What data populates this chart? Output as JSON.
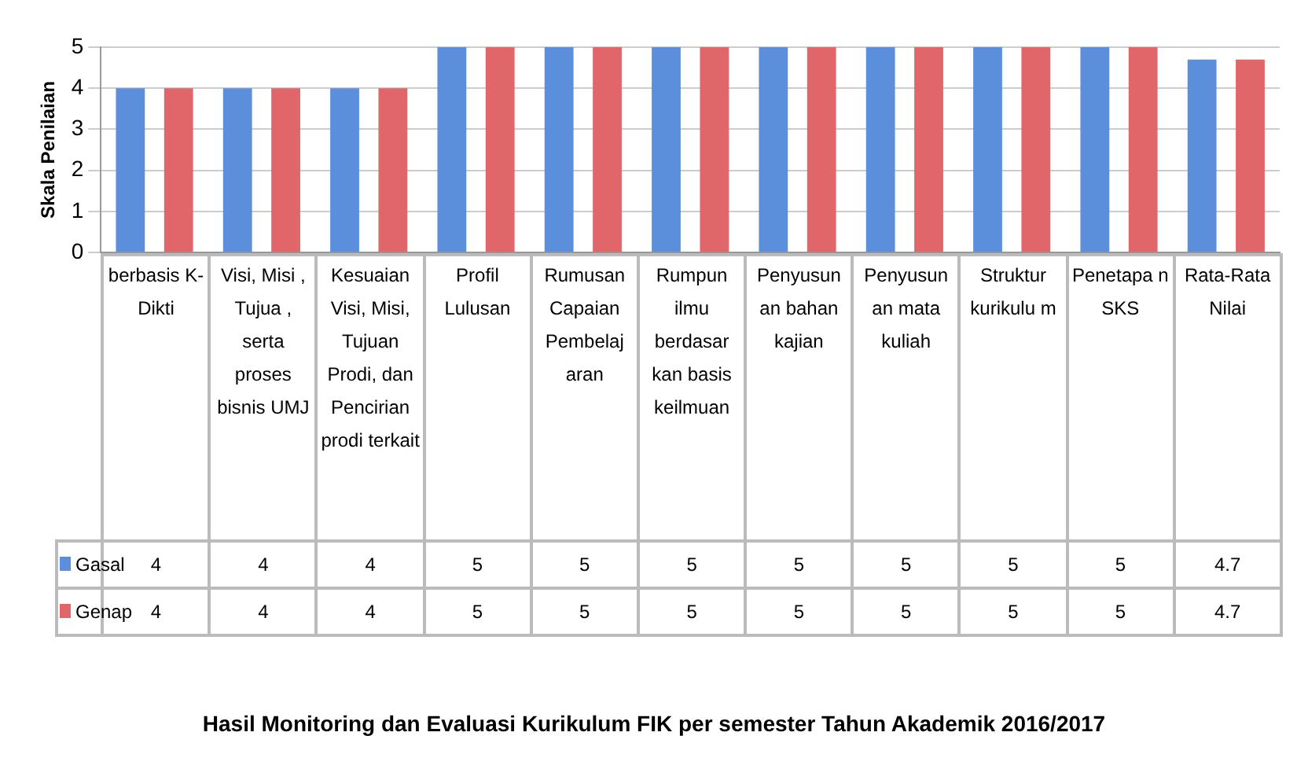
{
  "chart_data": {
    "type": "bar",
    "title": "Hasil Monitoring dan Evaluasi Kurikulum FIK per semester Tahun Akademik 2016/2017",
    "ylabel": "Skala Penilaian",
    "categories": [
      "berbasis K-Dikti",
      "Visi, Misi , Tujua , serta proses bisnis UMJ",
      "Kesuaian Visi, Misi, Tujuan Prodi, dan Pencirian prodi terkait",
      "Profil Lulusan",
      "Rumusan Capaian Pembelaj aran",
      "Rumpun ilmu berdasar kan basis keilmuan",
      "Penyusun an bahan kajian",
      "Penyusun an mata kuliah",
      "Struktur kurikulu m",
      "Penetapa n SKS",
      "Rata-Rata Nilai"
    ],
    "series": [
      {
        "name": "Gasal",
        "color": "#5b8fdc",
        "values": [
          4,
          4,
          4,
          5,
          5,
          5,
          5,
          5,
          5,
          5,
          4.7
        ]
      },
      {
        "name": "Genap",
        "color": "#e0666a",
        "values": [
          4,
          4,
          4,
          5,
          5,
          5,
          5,
          5,
          5,
          5,
          4.7
        ]
      }
    ],
    "ylim": [
      0,
      5
    ],
    "yticks": [
      0,
      1,
      2,
      3,
      4,
      5
    ],
    "grid": "y",
    "legend": "bottom",
    "data_labels": true
  }
}
